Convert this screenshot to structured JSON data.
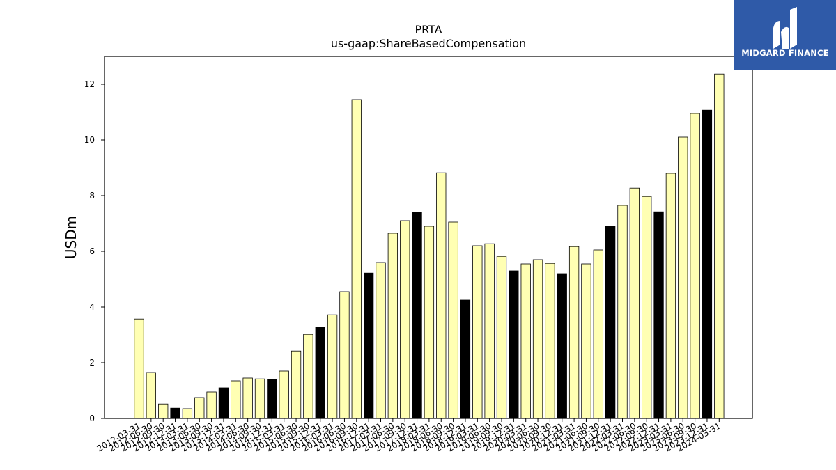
{
  "logo": {
    "text": "MIDGARD FINANCE",
    "color": "#2f5aa8"
  },
  "chart_data": {
    "type": "bar",
    "title": "PRTA",
    "subtitle": "us-gaap:ShareBasedCompensation",
    "xlabel": "",
    "ylabel": "USDm",
    "ylim": [
      0,
      13
    ],
    "yticks": [
      0,
      2,
      4,
      6,
      8,
      10,
      12
    ],
    "grid": false,
    "colors": {
      "bar": "#ffffb3",
      "highlight": "#000000",
      "edge": "#000000"
    },
    "categories": [
      "2012-03-31",
      "2012-06-30",
      "2012-09-30",
      "2012-12-31",
      "2013-03-31",
      "2013-06-30",
      "2013-09-30",
      "2013-12-31",
      "2014-03-31",
      "2014-06-30",
      "2014-09-30",
      "2014-12-31",
      "2015-03-31",
      "2015-06-30",
      "2015-09-30",
      "2015-12-31",
      "2016-03-31",
      "2016-06-30",
      "2016-09-30",
      "2016-12-31",
      "2017-03-31",
      "2017-06-30",
      "2017-09-30",
      "2017-12-31",
      "2018-03-31",
      "2018-06-30",
      "2018-09-30",
      "2018-12-31",
      "2019-03-31",
      "2019-06-30",
      "2019-09-30",
      "2019-12-31",
      "2020-03-31",
      "2020-06-30",
      "2020-09-30",
      "2020-12-31",
      "2021-03-31",
      "2021-06-30",
      "2021-09-30",
      "2021-12-31",
      "2022-03-31",
      "2022-06-30",
      "2022-09-30",
      "2022-12-31",
      "2023-03-31",
      "2023-06-30",
      "2023-09-30",
      "2023-12-31",
      "2024-03-31"
    ],
    "values": [
      3.57,
      1.65,
      0.52,
      0.37,
      0.35,
      0.75,
      0.95,
      1.1,
      1.35,
      1.45,
      1.42,
      1.4,
      1.7,
      2.42,
      3.02,
      3.27,
      3.72,
      4.55,
      11.45,
      5.22,
      5.6,
      6.65,
      7.1,
      7.4,
      6.9,
      8.82,
      7.05,
      4.25,
      6.2,
      6.27,
      5.82,
      5.3,
      5.55,
      5.7,
      5.57,
      5.2,
      6.17,
      5.55,
      6.05,
      6.9,
      7.65,
      8.27,
      7.97,
      7.42,
      8.8,
      10.1,
      10.95,
      11.07,
      12.37
    ],
    "highlighted": [
      "2012-12-31",
      "2013-12-31",
      "2014-12-31",
      "2015-12-31",
      "2016-12-31",
      "2017-12-31",
      "2018-12-31",
      "2019-12-31",
      "2020-12-31",
      "2021-12-31",
      "2022-12-31",
      "2023-12-31"
    ]
  }
}
